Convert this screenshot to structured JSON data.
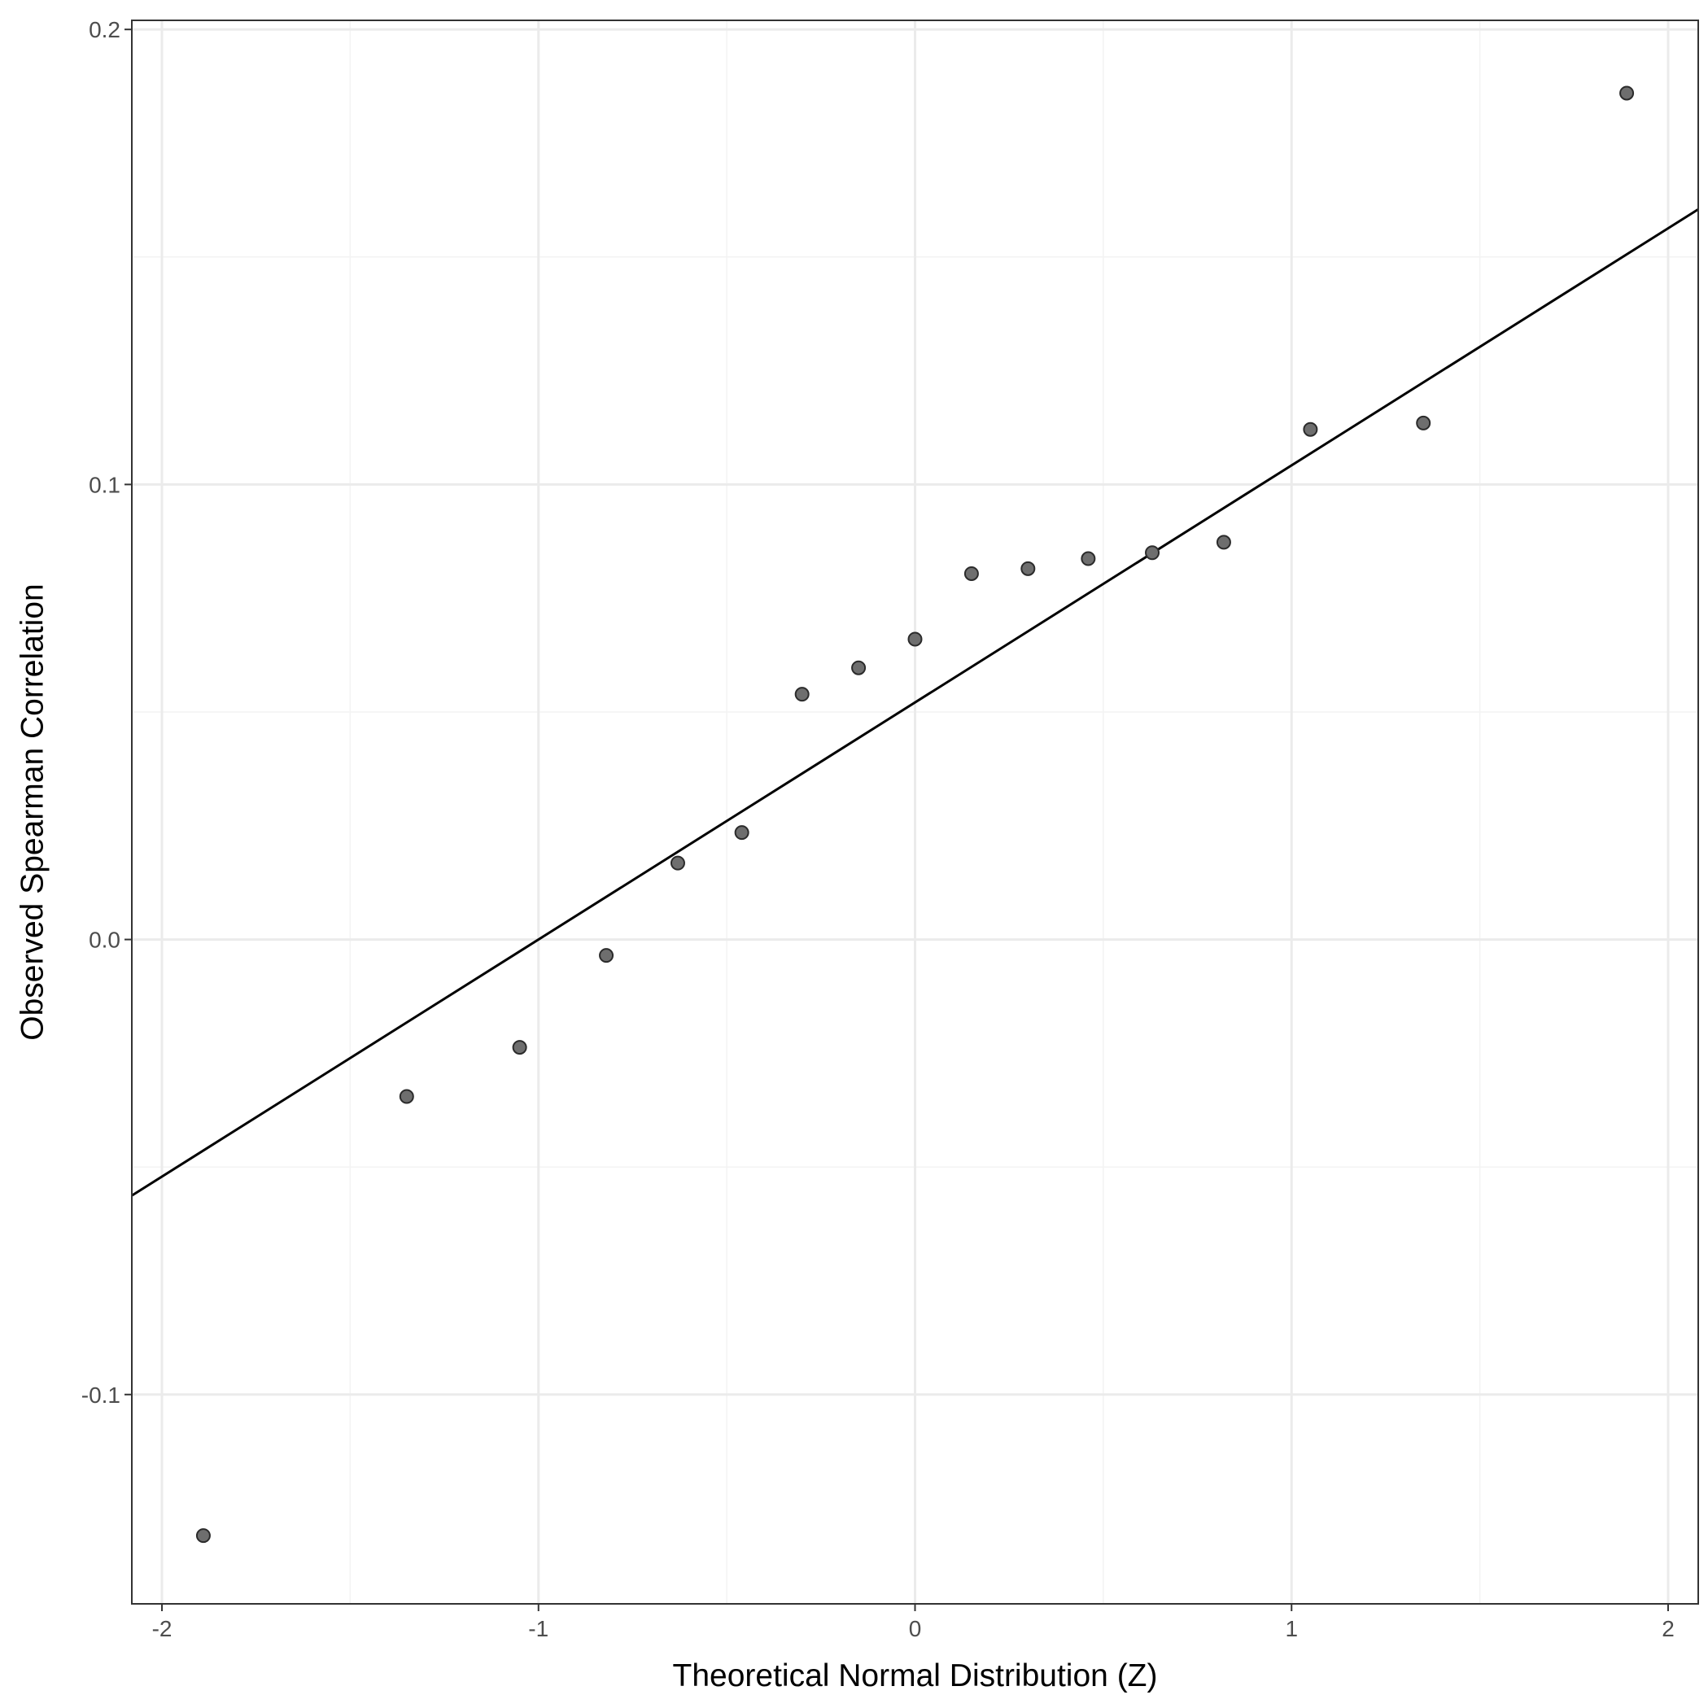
{
  "chart_data": {
    "type": "scatter",
    "title": "",
    "xlabel": "Theoretical Normal Distribution (Z)",
    "ylabel": "Observed Spearman Correlation",
    "xlim": [
      -2.08,
      2.08
    ],
    "ylim": [
      -0.146,
      0.202
    ],
    "x_ticks": [
      -2,
      -1,
      0,
      1,
      2
    ],
    "x_tick_labels": [
      "-2",
      "-1",
      "0",
      "1",
      "2"
    ],
    "y_ticks": [
      -0.1,
      0.0,
      0.1,
      0.2
    ],
    "y_tick_labels": [
      "-0.1",
      "0.0",
      "0.1",
      "0.2"
    ],
    "x_minor_ticks": [
      -1.5,
      -0.5,
      0.5,
      1.5
    ],
    "y_minor_ticks": [
      -0.05,
      0.05,
      0.15
    ],
    "grid": true,
    "points": {
      "x": [
        -1.89,
        -1.35,
        -1.05,
        -0.82,
        -0.63,
        -0.46,
        -0.3,
        -0.15,
        0.0,
        0.15,
        0.3,
        0.46,
        0.63,
        0.82,
        1.05,
        1.35,
        1.89
      ],
      "y": [
        -0.131,
        -0.0345,
        -0.0237,
        -0.0035,
        0.0168,
        0.0235,
        0.0539,
        0.0597,
        0.066,
        0.0804,
        0.0815,
        0.0837,
        0.085,
        0.0873,
        0.1121,
        0.1135,
        0.186
      ]
    },
    "reference_line": {
      "slope": 0.0521,
      "intercept": 0.0521
    },
    "colors": {
      "point_fill": "#6e6e6e",
      "point_stroke": "#2b2b2b",
      "line": "#000000",
      "grid_major": "#ebebeb",
      "grid_minor": "#f3f3f3",
      "panel_border": "#333333"
    }
  }
}
